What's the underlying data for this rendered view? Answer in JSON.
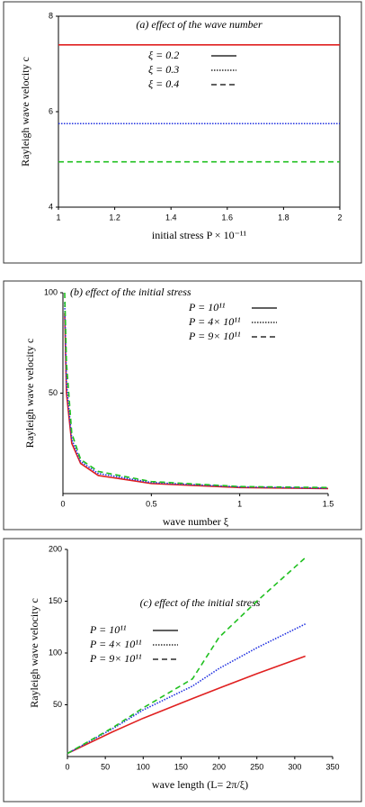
{
  "chart_data": [
    {
      "type": "line",
      "title": "(a) effect of the wave number",
      "xlabel": "initial stress P × 10⁻¹¹",
      "ylabel": "Rayleigh wave velocity c",
      "x": [
        1,
        2
      ],
      "xlim": [
        1,
        2
      ],
      "xticks": [
        1,
        1.2,
        1.4,
        1.6,
        1.8,
        2
      ],
      "ylim": [
        4,
        8
      ],
      "yticks": [
        4,
        6,
        8
      ],
      "series": [
        {
          "name": "ξ = 0.2",
          "color": "#e02020",
          "style": "solid",
          "values": [
            7.4,
            7.4
          ]
        },
        {
          "name": "ξ = 0.3",
          "color": "#2030e0",
          "style": "dotted",
          "values": [
            5.75,
            5.75
          ]
        },
        {
          "name": "ξ = 0.4",
          "color": "#20c020",
          "style": "dashed",
          "values": [
            4.95,
            4.95
          ]
        }
      ]
    },
    {
      "type": "line",
      "title": "(b) effect of the initial stress",
      "xlabel": "wave number ξ",
      "ylabel": "Rayleigh wave velocity c",
      "x": [
        0.01,
        0.02,
        0.05,
        0.1,
        0.2,
        0.5,
        1,
        1.5
      ],
      "xlim": [
        0,
        1.5
      ],
      "xticks": [
        0,
        0.5,
        1,
        1.5
      ],
      "ylim": [
        0,
        100
      ],
      "yticks": [
        50,
        100
      ],
      "series": [
        {
          "name": "P = 10¹¹",
          "color": "#e02020",
          "style": "solid",
          "values": [
            90,
            50,
            25,
            15,
            9,
            5,
            3,
            2.5
          ]
        },
        {
          "name": "P = 4× 10¹¹",
          "color": "#2030e0",
          "style": "dotted",
          "values": [
            95,
            55,
            27,
            16,
            10,
            5.5,
            3.3,
            2.7
          ]
        },
        {
          "name": "P = 9× 10¹¹",
          "color": "#20c020",
          "style": "dashed",
          "values": [
            100,
            65,
            30,
            17,
            11,
            6,
            3.5,
            3
          ]
        }
      ]
    },
    {
      "type": "line",
      "title": "(c) effect of the initial stress",
      "xlabel": "wave length (L= 2π/ξ)",
      "ylabel": "Rayleigh wave velocity c",
      "x": [
        0,
        60,
        100,
        165,
        200,
        250,
        314
      ],
      "xlim": [
        0,
        350
      ],
      "xticks": [
        0,
        50,
        100,
        150,
        200,
        250,
        300,
        350
      ],
      "ylim": [
        0,
        200
      ],
      "yticks": [
        50,
        100,
        150,
        200
      ],
      "series": [
        {
          "name": "P = 10¹¹",
          "color": "#e02020",
          "style": "solid",
          "values": [
            3,
            24,
            37,
            56,
            66,
            80,
            97
          ]
        },
        {
          "name": "P = 4× 10¹¹",
          "color": "#2030e0",
          "style": "dotted",
          "values": [
            3,
            27,
            45,
            68,
            85,
            105,
            128
          ]
        },
        {
          "name": "P = 9× 10¹¹",
          "color": "#20c020",
          "style": "dashed",
          "values": [
            3,
            28,
            47,
            75,
            115,
            150,
            192
          ]
        }
      ]
    }
  ]
}
